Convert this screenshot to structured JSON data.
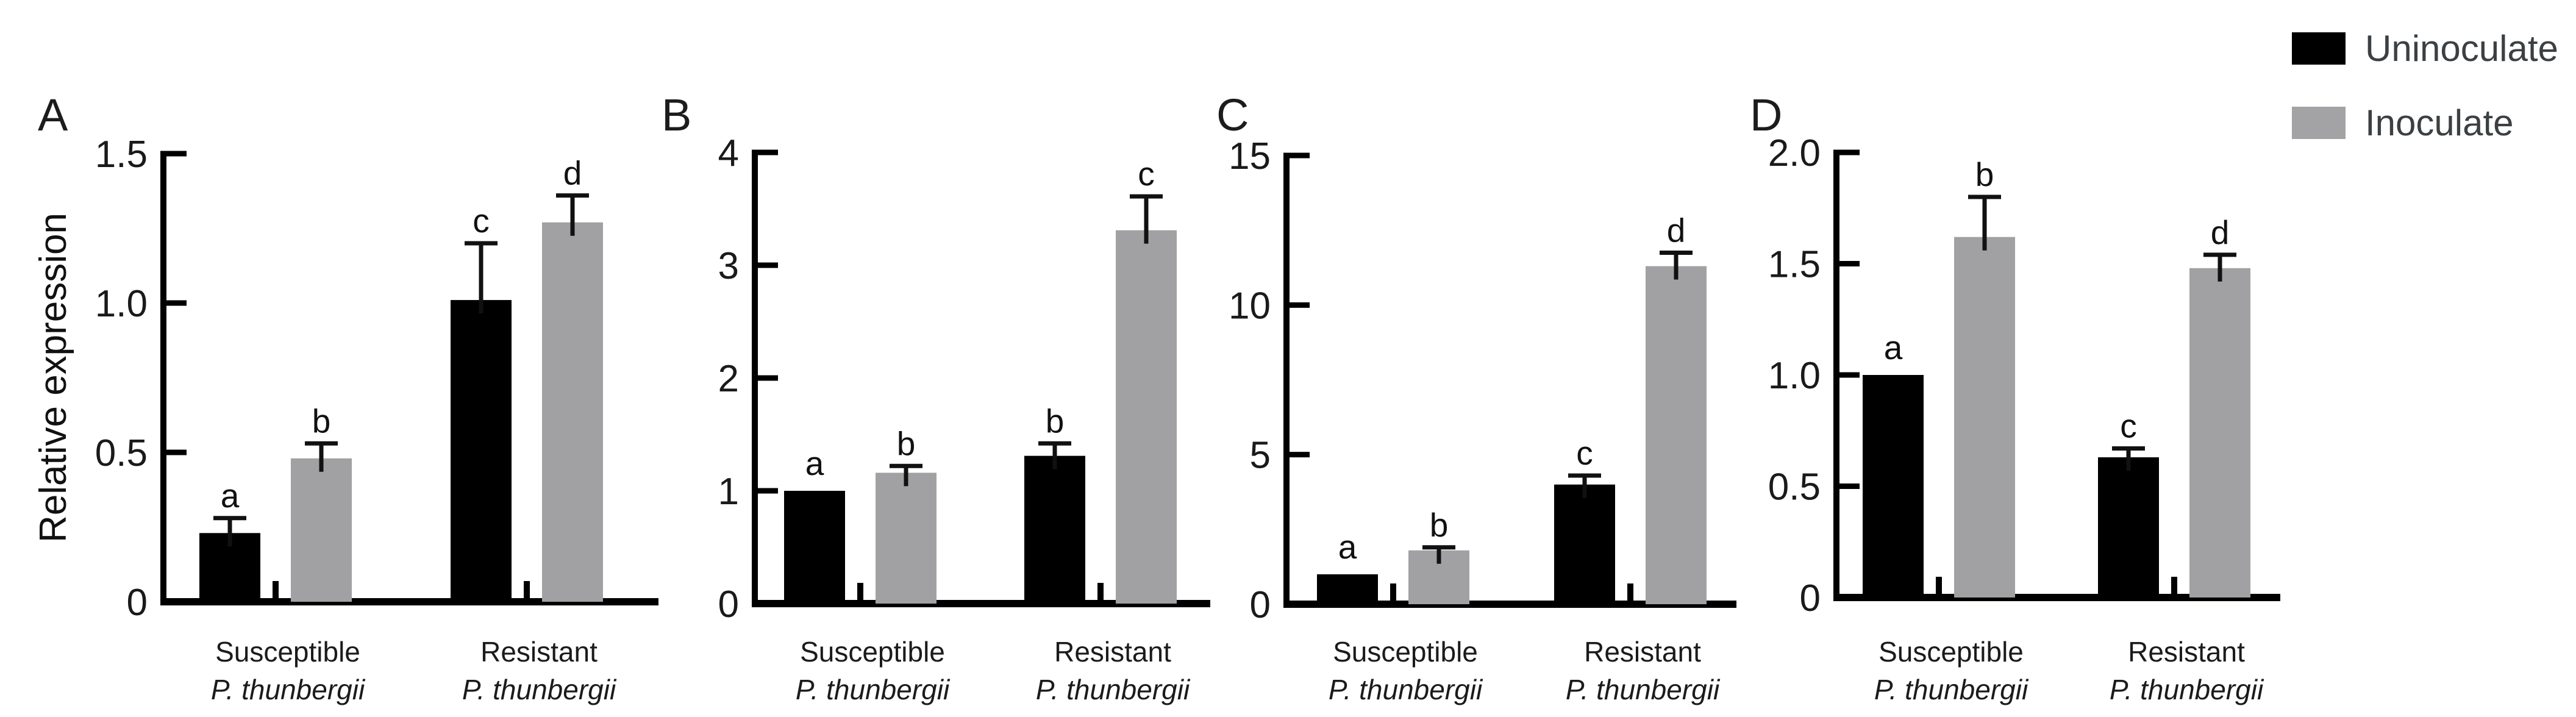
{
  "figure": {
    "y_axis_label": "Relative expression",
    "background": "#ffffff",
    "legend": {
      "items": [
        {
          "label": "Uninoculate",
          "color": "#000000"
        },
        {
          "label": "Inoculate",
          "color": "#a3a3a5"
        }
      ],
      "text_color": "#3c4043"
    },
    "colors": {
      "axis": "#000000",
      "tick_label": "#1a1a1a",
      "sig_letter": "#111111",
      "category_label": "#1b1b1b",
      "panel_letter": "#1c1c1c",
      "error_bar": "#111111"
    }
  },
  "chart_data": [
    {
      "panel": "A",
      "type": "bar",
      "title": "",
      "ylabel": "Relative expression",
      "xlabel": "",
      "ylim": [
        0,
        1.5
      ],
      "yticks": [
        0,
        0.5,
        1.0,
        1.5
      ],
      "ytick_labels": [
        "0",
        "0.5",
        "1.0",
        "1.5"
      ],
      "grid": false,
      "categories": [
        {
          "line1": "Susceptible",
          "line2": "P. thunbergii"
        },
        {
          "line1": "Resistant",
          "line2": "P. thunbergii"
        }
      ],
      "series": [
        {
          "name": "Uninoculate",
          "color": "#000000",
          "values": [
            0.23,
            1.01
          ],
          "errors": [
            0.05,
            0.19
          ],
          "letters": [
            "a",
            "c"
          ]
        },
        {
          "name": "Inoculate",
          "color": "#a1a1a3",
          "values": [
            0.48,
            1.27
          ],
          "errors": [
            0.05,
            0.09
          ],
          "letters": [
            "b",
            "d"
          ]
        }
      ]
    },
    {
      "panel": "B",
      "type": "bar",
      "title": "",
      "ylabel": "",
      "xlabel": "",
      "ylim": [
        0,
        4
      ],
      "yticks": [
        0,
        1,
        2,
        3,
        4
      ],
      "ytick_labels": [
        "0",
        "1",
        "2",
        "3",
        "4"
      ],
      "grid": false,
      "categories": [
        {
          "line1": "Susceptible",
          "line2": "P. thunbergii"
        },
        {
          "line1": "Resistant",
          "line2": "P. thunbergii"
        }
      ],
      "series": [
        {
          "name": "Uninoculate",
          "color": "#000000",
          "values": [
            1.0,
            1.31
          ],
          "errors": [
            0,
            0.11
          ],
          "letters": [
            "a",
            "b"
          ]
        },
        {
          "name": "Inoculate",
          "color": "#a1a1a3",
          "values": [
            1.16,
            3.31
          ],
          "errors": [
            0.06,
            0.3
          ],
          "letters": [
            "b",
            "c"
          ]
        }
      ]
    },
    {
      "panel": "C",
      "type": "bar",
      "title": "",
      "ylabel": "",
      "xlabel": "",
      "ylim": [
        0,
        15
      ],
      "yticks": [
        0,
        5,
        10,
        15
      ],
      "ytick_labels": [
        "0",
        "5",
        "10",
        "15"
      ],
      "grid": false,
      "categories": [
        {
          "line1": "Susceptible",
          "line2": "P. thunbergii"
        },
        {
          "line1": "Resistant",
          "line2": "P. thunbergii"
        }
      ],
      "series": [
        {
          "name": "Uninoculate",
          "color": "#000000",
          "values": [
            1.0,
            4.0
          ],
          "errors": [
            0,
            0.3
          ],
          "letters": [
            "a",
            "c"
          ]
        },
        {
          "name": "Inoculate",
          "color": "#a1a1a3",
          "values": [
            1.8,
            11.3
          ],
          "errors": [
            0.1,
            0.45
          ],
          "letters": [
            "b",
            "d"
          ]
        }
      ]
    },
    {
      "panel": "D",
      "type": "bar",
      "title": "",
      "ylabel": "",
      "xlabel": "",
      "ylim": [
        0,
        2
      ],
      "yticks": [
        0,
        0.5,
        1.0,
        1.5,
        2.0
      ],
      "ytick_labels": [
        "0",
        "0.5",
        "1.0",
        "1.5",
        "2.0"
      ],
      "grid": false,
      "categories": [
        {
          "line1": "Susceptible",
          "line2": "P. thunbergii"
        },
        {
          "line1": "Resistant",
          "line2": "P. thunbergii"
        }
      ],
      "series": [
        {
          "name": "Uninoculate",
          "color": "#000000",
          "values": [
            1.0,
            0.63
          ],
          "errors": [
            0,
            0.04
          ],
          "letters": [
            "a",
            "c"
          ]
        },
        {
          "name": "Inoculate",
          "color": "#a1a1a3",
          "values": [
            1.62,
            1.48
          ],
          "errors": [
            0.18,
            0.06
          ],
          "letters": [
            "b",
            "d"
          ]
        }
      ]
    }
  ]
}
